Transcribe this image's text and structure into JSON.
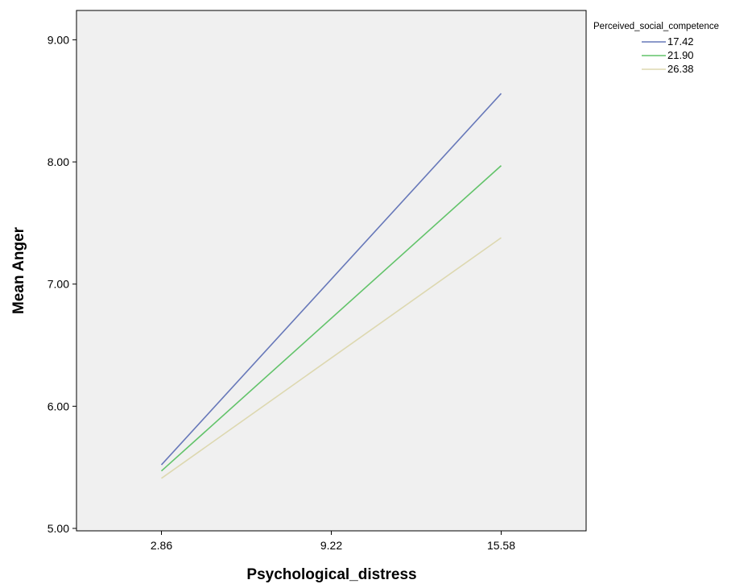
{
  "chart_data": {
    "type": "line",
    "xlabel": "Psychological_distress",
    "ylabel": "Mean Anger",
    "x": [
      2.86,
      15.58
    ],
    "x_ticks": [
      "2.86",
      "9.22",
      "15.58"
    ],
    "x_tick_values": [
      2.86,
      9.22,
      15.58
    ],
    "y_ticks": [
      "5.00",
      "6.00",
      "7.00",
      "8.00",
      "9.00"
    ],
    "y_tick_values": [
      5,
      6,
      7,
      8,
      9
    ],
    "ylim": [
      4.98,
      9.24
    ],
    "xlim": [
      -0.32,
      18.76
    ],
    "grid": false,
    "plot_background": "#f0f0f0",
    "legend": {
      "title": "Perceived_social_competence",
      "position": "top-right-outside"
    },
    "series": [
      {
        "name": "17.42",
        "color": "#6778b9",
        "values": [
          5.52,
          8.56
        ]
      },
      {
        "name": "21.90",
        "color": "#62c36a",
        "values": [
          5.47,
          7.97
        ]
      },
      {
        "name": "26.38",
        "color": "#ddd8b0",
        "values": [
          5.41,
          7.38
        ]
      }
    ]
  }
}
